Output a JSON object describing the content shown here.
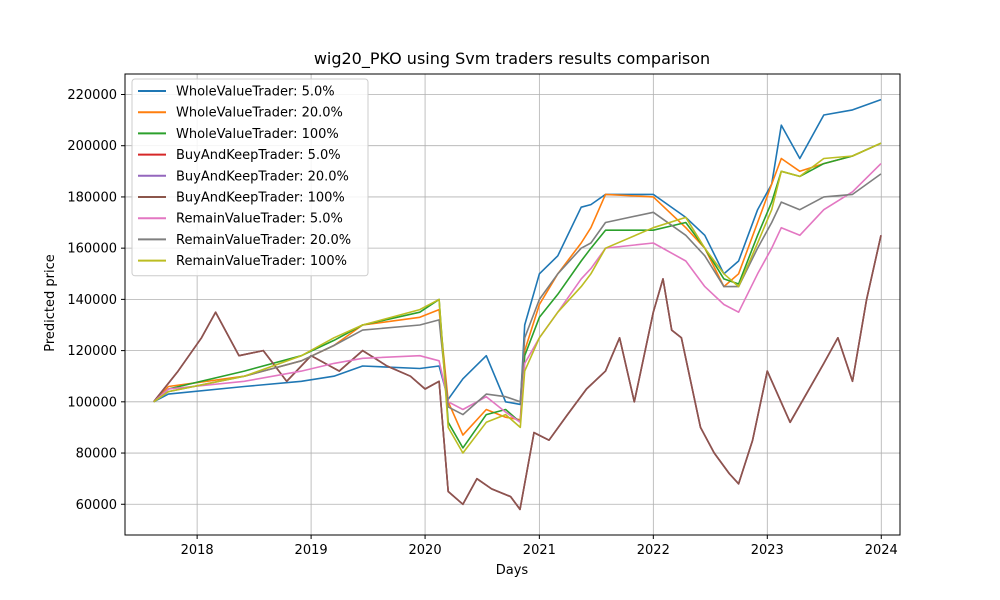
{
  "chart_data": {
    "type": "line",
    "title": "wig20_PKO using Svm traders results comparison",
    "xlabel": "Days",
    "ylabel": "Predicted price",
    "xlim": [
      "2017-05-15",
      "2024-03-01"
    ],
    "ylim": [
      48000,
      228000
    ],
    "x_ticks": [
      "2018-01-01",
      "2019-01-01",
      "2020-01-01",
      "2021-01-01",
      "2022-01-01",
      "2023-01-01",
      "2024-01-01"
    ],
    "x_tick_labels": [
      "2018",
      "2019",
      "2020",
      "2021",
      "2022",
      "2023",
      "2024"
    ],
    "y_ticks": [
      60000,
      80000,
      100000,
      120000,
      140000,
      160000,
      180000,
      200000,
      220000
    ],
    "y_tick_labels": [
      "60000",
      "80000",
      "100000",
      "120000",
      "140000",
      "160000",
      "180000",
      "200000",
      "220000"
    ],
    "grid": true,
    "legend_position": "top-left",
    "series": [
      {
        "name": "WholeValueTrader: 5.0%",
        "color": "#1f77b4",
        "x": [
          "2017-08-15",
          "2017-10-01",
          "2018-06-01",
          "2018-12-01",
          "2019-03-15",
          "2019-06-15",
          "2019-12-15",
          "2020-02-15",
          "2020-03-15",
          "2020-05-01",
          "2020-07-15",
          "2020-09-15",
          "2020-11-01",
          "2020-11-15",
          "2021-01-01",
          "2021-03-01",
          "2021-05-15",
          "2021-06-15",
          "2021-08-01",
          "2022-01-01",
          "2022-04-15",
          "2022-06-15",
          "2022-08-15",
          "2022-10-01",
          "2022-12-01",
          "2023-01-15",
          "2023-02-15",
          "2023-04-15",
          "2023-07-01",
          "2023-10-01",
          "2023-12-31"
        ],
        "y": [
          100000,
          103000,
          106000,
          108000,
          110000,
          114000,
          113000,
          114000,
          101000,
          109000,
          118000,
          100000,
          99000,
          130000,
          150000,
          157000,
          176000,
          177000,
          181000,
          181000,
          172000,
          165000,
          150000,
          155000,
          175000,
          185000,
          208000,
          195000,
          212000,
          214000,
          218000
        ]
      },
      {
        "name": "WholeValueTrader: 20.0%",
        "color": "#ff7f0e",
        "x": [
          "2017-08-15",
          "2017-10-01",
          "2018-06-01",
          "2018-12-01",
          "2019-03-15",
          "2019-06-15",
          "2019-12-15",
          "2020-02-15",
          "2020-03-15",
          "2020-05-01",
          "2020-07-15",
          "2020-09-15",
          "2020-11-01",
          "2020-11-15",
          "2021-01-01",
          "2021-03-01",
          "2021-05-15",
          "2021-06-15",
          "2021-08-01",
          "2022-01-01",
          "2022-04-15",
          "2022-06-15",
          "2022-08-15",
          "2022-10-01",
          "2022-12-01",
          "2023-01-15",
          "2023-02-15",
          "2023-04-15",
          "2023-07-01",
          "2023-10-01",
          "2023-12-31"
        ],
        "y": [
          100000,
          106000,
          110000,
          116000,
          122000,
          130000,
          133000,
          136000,
          100000,
          87000,
          97000,
          94000,
          93000,
          120000,
          138000,
          150000,
          162000,
          168000,
          181000,
          180000,
          168000,
          160000,
          145000,
          150000,
          170000,
          185000,
          195000,
          190000,
          193000,
          196000,
          201000
        ]
      },
      {
        "name": "WholeValueTrader: 100%",
        "color": "#2ca02c",
        "x": [
          "2017-08-15",
          "2017-10-01",
          "2018-06-01",
          "2018-12-01",
          "2019-03-15",
          "2019-06-15",
          "2019-12-15",
          "2020-02-15",
          "2020-03-15",
          "2020-05-01",
          "2020-07-15",
          "2020-09-15",
          "2020-11-01",
          "2020-11-15",
          "2021-01-01",
          "2021-03-01",
          "2021-05-15",
          "2021-06-15",
          "2021-08-01",
          "2022-01-01",
          "2022-04-15",
          "2022-06-15",
          "2022-08-15",
          "2022-10-01",
          "2022-12-01",
          "2023-01-15",
          "2023-02-15",
          "2023-04-15",
          "2023-07-01",
          "2023-10-01",
          "2023-12-31"
        ],
        "y": [
          100000,
          105000,
          112000,
          118000,
          124000,
          130000,
          135000,
          140000,
          92000,
          82000,
          95000,
          97000,
          92000,
          118000,
          133000,
          142000,
          155000,
          160000,
          167000,
          167000,
          170000,
          160000,
          148000,
          146000,
          165000,
          178000,
          190000,
          188000,
          193000,
          196000,
          201000
        ]
      },
      {
        "name": "BuyAndKeepTrader: 5.0%",
        "color": "#d62728",
        "x": [
          "2017-08-15",
          "2017-11-01",
          "2018-01-15",
          "2018-03-01",
          "2018-05-15",
          "2018-08-01",
          "2018-10-15",
          "2019-01-01",
          "2019-04-01",
          "2019-06-15",
          "2019-09-01",
          "2019-11-15",
          "2020-01-01",
          "2020-02-15",
          "2020-03-15",
          "2020-05-01",
          "2020-06-15",
          "2020-08-01",
          "2020-10-01",
          "2020-10-31",
          "2020-12-15",
          "2021-02-01",
          "2021-04-01",
          "2021-06-01",
          "2021-08-01",
          "2021-09-15",
          "2021-11-01",
          "2022-01-01",
          "2022-02-01",
          "2022-03-01",
          "2022-04-01",
          "2022-06-01",
          "2022-07-15",
          "2022-09-01",
          "2022-10-01",
          "2022-11-15",
          "2023-01-01",
          "2023-03-15",
          "2023-05-01",
          "2023-07-01",
          "2023-08-15",
          "2023-10-01",
          "2023-11-15",
          "2023-12-31"
        ],
        "y": [
          100000,
          112000,
          125000,
          135000,
          118000,
          120000,
          108000,
          118000,
          112000,
          120000,
          114000,
          110000,
          105000,
          108000,
          65000,
          60000,
          70000,
          66000,
          63000,
          58000,
          88000,
          85000,
          95000,
          105000,
          112000,
          125000,
          100000,
          135000,
          148000,
          128000,
          125000,
          90000,
          80000,
          72000,
          68000,
          85000,
          112000,
          92000,
          102000,
          115000,
          125000,
          108000,
          140000,
          165000
        ]
      },
      {
        "name": "BuyAndKeepTrader: 20.0%",
        "color": "#9467bd",
        "x": [
          "2017-08-15",
          "2017-11-01",
          "2018-01-15",
          "2018-03-01",
          "2018-05-15",
          "2018-08-01",
          "2018-10-15",
          "2019-01-01",
          "2019-04-01",
          "2019-06-15",
          "2019-09-01",
          "2019-11-15",
          "2020-01-01",
          "2020-02-15",
          "2020-03-15",
          "2020-05-01",
          "2020-06-15",
          "2020-08-01",
          "2020-10-01",
          "2020-10-31",
          "2020-12-15",
          "2021-02-01",
          "2021-04-01",
          "2021-06-01",
          "2021-08-01",
          "2021-09-15",
          "2021-11-01",
          "2022-01-01",
          "2022-02-01",
          "2022-03-01",
          "2022-04-01",
          "2022-06-01",
          "2022-07-15",
          "2022-09-01",
          "2022-10-01",
          "2022-11-15",
          "2023-01-01",
          "2023-03-15",
          "2023-05-01",
          "2023-07-01",
          "2023-08-15",
          "2023-10-01",
          "2023-11-15",
          "2023-12-31"
        ],
        "y": [
          100000,
          112000,
          125000,
          135000,
          118000,
          120000,
          108000,
          118000,
          112000,
          120000,
          114000,
          110000,
          105000,
          108000,
          65000,
          60000,
          70000,
          66000,
          63000,
          58000,
          88000,
          85000,
          95000,
          105000,
          112000,
          125000,
          100000,
          135000,
          148000,
          128000,
          125000,
          90000,
          80000,
          72000,
          68000,
          85000,
          112000,
          92000,
          102000,
          115000,
          125000,
          108000,
          140000,
          165000
        ]
      },
      {
        "name": "BuyAndKeepTrader: 100%",
        "color": "#8c564b",
        "x": [
          "2017-08-15",
          "2017-11-01",
          "2018-01-15",
          "2018-03-01",
          "2018-05-15",
          "2018-08-01",
          "2018-10-15",
          "2019-01-01",
          "2019-04-01",
          "2019-06-15",
          "2019-09-01",
          "2019-11-15",
          "2020-01-01",
          "2020-02-15",
          "2020-03-15",
          "2020-05-01",
          "2020-06-15",
          "2020-08-01",
          "2020-10-01",
          "2020-10-31",
          "2020-12-15",
          "2021-02-01",
          "2021-04-01",
          "2021-06-01",
          "2021-08-01",
          "2021-09-15",
          "2021-11-01",
          "2022-01-01",
          "2022-02-01",
          "2022-03-01",
          "2022-04-01",
          "2022-06-01",
          "2022-07-15",
          "2022-09-01",
          "2022-10-01",
          "2022-11-15",
          "2023-01-01",
          "2023-03-15",
          "2023-05-01",
          "2023-07-01",
          "2023-08-15",
          "2023-10-01",
          "2023-11-15",
          "2023-12-31"
        ],
        "y": [
          100000,
          112000,
          125000,
          135000,
          118000,
          120000,
          108000,
          118000,
          112000,
          120000,
          114000,
          110000,
          105000,
          108000,
          65000,
          60000,
          70000,
          66000,
          63000,
          58000,
          88000,
          85000,
          95000,
          105000,
          112000,
          125000,
          100000,
          135000,
          148000,
          128000,
          125000,
          90000,
          80000,
          72000,
          68000,
          85000,
          112000,
          92000,
          102000,
          115000,
          125000,
          108000,
          140000,
          165000
        ]
      },
      {
        "name": "RemainValueTrader: 5.0%",
        "color": "#e377c2",
        "x": [
          "2017-08-15",
          "2017-10-01",
          "2018-06-01",
          "2018-12-01",
          "2019-03-15",
          "2019-06-15",
          "2019-12-15",
          "2020-02-15",
          "2020-03-15",
          "2020-05-01",
          "2020-07-15",
          "2020-09-15",
          "2020-11-01",
          "2020-11-15",
          "2021-01-01",
          "2021-03-01",
          "2021-05-15",
          "2021-06-15",
          "2021-08-01",
          "2022-01-01",
          "2022-04-15",
          "2022-06-15",
          "2022-08-15",
          "2022-10-01",
          "2022-12-01",
          "2023-01-15",
          "2023-02-15",
          "2023-04-15",
          "2023-07-01",
          "2023-10-01",
          "2023-12-31"
        ],
        "y": [
          100000,
          105000,
          108000,
          112000,
          115000,
          117000,
          118000,
          116000,
          100000,
          97000,
          102000,
          96000,
          92000,
          115000,
          125000,
          135000,
          148000,
          152000,
          160000,
          162000,
          155000,
          145000,
          138000,
          135000,
          150000,
          160000,
          168000,
          165000,
          175000,
          182000,
          193000
        ]
      },
      {
        "name": "RemainValueTrader: 20.0%",
        "color": "#7f7f7f",
        "x": [
          "2017-08-15",
          "2017-10-01",
          "2018-06-01",
          "2018-12-01",
          "2019-03-15",
          "2019-06-15",
          "2019-12-15",
          "2020-02-15",
          "2020-03-15",
          "2020-05-01",
          "2020-07-15",
          "2020-09-15",
          "2020-11-01",
          "2020-11-15",
          "2021-01-01",
          "2021-03-01",
          "2021-05-15",
          "2021-06-15",
          "2021-08-01",
          "2022-01-01",
          "2022-04-15",
          "2022-06-15",
          "2022-08-15",
          "2022-10-01",
          "2022-12-01",
          "2023-01-15",
          "2023-02-15",
          "2023-04-15",
          "2023-07-01",
          "2023-10-01",
          "2023-12-31"
        ],
        "y": [
          100000,
          104000,
          110000,
          116000,
          122000,
          128000,
          130000,
          132000,
          98000,
          95000,
          103000,
          102000,
          100000,
          125000,
          140000,
          150000,
          160000,
          162000,
          170000,
          174000,
          165000,
          157000,
          145000,
          145000,
          160000,
          170000,
          178000,
          175000,
          180000,
          181000,
          189000
        ]
      },
      {
        "name": "RemainValueTrader: 100%",
        "color": "#bcbd22",
        "x": [
          "2017-08-15",
          "2017-10-01",
          "2018-06-01",
          "2018-12-01",
          "2019-03-15",
          "2019-06-15",
          "2019-12-15",
          "2020-02-15",
          "2020-03-15",
          "2020-05-01",
          "2020-07-15",
          "2020-09-15",
          "2020-11-01",
          "2020-11-15",
          "2021-01-01",
          "2021-03-01",
          "2021-05-15",
          "2021-06-15",
          "2021-08-01",
          "2022-01-01",
          "2022-04-15",
          "2022-06-15",
          "2022-08-15",
          "2022-10-01",
          "2022-12-01",
          "2023-01-15",
          "2023-02-15",
          "2023-04-15",
          "2023-07-01",
          "2023-10-01",
          "2023-12-31"
        ],
        "y": [
          100000,
          104000,
          110000,
          118000,
          125000,
          130000,
          136000,
          140000,
          90000,
          80000,
          92000,
          95000,
          90000,
          112000,
          125000,
          135000,
          145000,
          150000,
          160000,
          168000,
          172000,
          160000,
          150000,
          145000,
          162000,
          175000,
          190000,
          188000,
          195000,
          196000,
          201000
        ]
      }
    ]
  }
}
